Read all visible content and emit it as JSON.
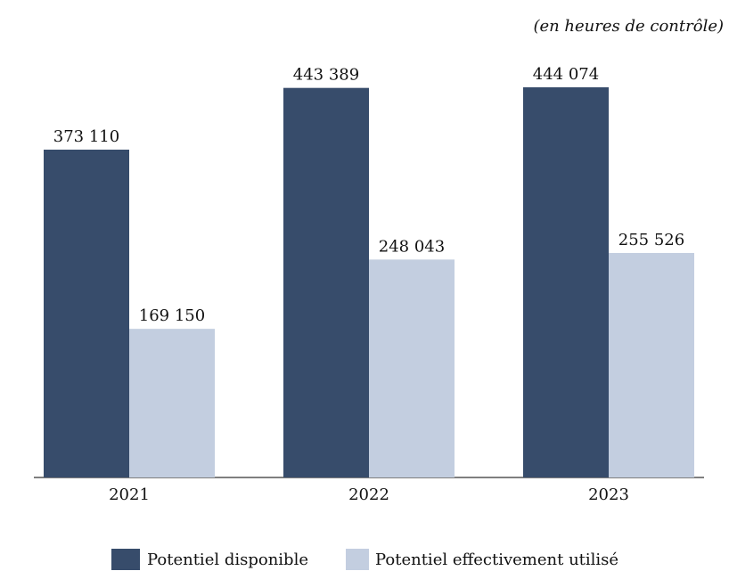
{
  "chart_data": {
    "type": "bar",
    "subtitle": "(en heures de contrôle)",
    "categories": [
      "2021",
      "2022",
      "2023"
    ],
    "series": [
      {
        "name": "Potentiel disponible",
        "color": "#374c6b",
        "values": [
          373110,
          443389,
          444074
        ],
        "value_labels": [
          "373 110",
          "443 389",
          "444 074"
        ]
      },
      {
        "name": "Potentiel effectivement utilisé",
        "color": "#c3cee0",
        "values": [
          169150,
          248043,
          255526
        ],
        "value_labels": [
          "169 150",
          "248 043",
          "255 526"
        ]
      }
    ]
  }
}
